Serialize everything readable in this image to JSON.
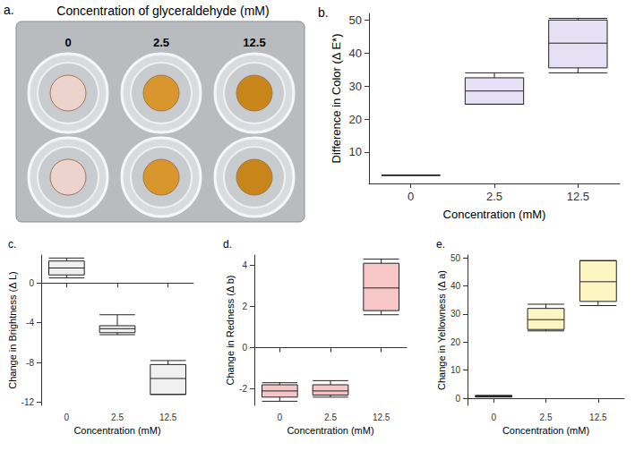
{
  "panel_a": {
    "panel": "a.",
    "title": "Concentration of glyceraldehyde (mM)",
    "labels": [
      "0",
      "2.5",
      "12.5"
    ]
  },
  "chart_data": [
    {
      "type": "boxplot",
      "panel": "b.",
      "y_label": "Difference in Color (Δ E*)",
      "x_label": "Concentration (mM)",
      "categories": [
        "0",
        "2.5",
        "12.5"
      ],
      "values": [
        [
          3,
          3,
          3,
          3,
          3
        ],
        [
          24.5,
          24.5,
          28.5,
          32.5,
          34
        ],
        [
          34,
          35.5,
          43,
          50,
          50.5
        ]
      ],
      "color": "#e6e0f5",
      "ylim": [
        0.5,
        52
      ],
      "yticks": [
        10,
        20,
        30,
        40,
        50
      ],
      "grid": false
    },
    {
      "type": "boxplot",
      "panel": "c.",
      "y_label": "Change in Brightness (Δ L)",
      "x_label": "Concentration (mM)",
      "categories": [
        "0",
        "2.5",
        "12.5"
      ],
      "values": [
        [
          0.5,
          0.8,
          1.5,
          2.2,
          2.5
        ],
        [
          -5.2,
          -5,
          -4.6,
          -4.3,
          -3.2
        ],
        [
          -11.2,
          -11.2,
          -9.6,
          -8.2,
          -7.8
        ]
      ],
      "color": "#f0f0f0",
      "ylim": [
        -12.3,
        2.8
      ],
      "yticks": [
        -12,
        -8,
        -4,
        0
      ],
      "grid": false
    },
    {
      "type": "boxplot",
      "panel": "d.",
      "y_label": "Change in Redness (Δ b)",
      "x_label": "Concentration (mM)",
      "categories": [
        "0",
        "2.5",
        "12.5"
      ],
      "values": [
        [
          -2.6,
          -2.4,
          -2.1,
          -1.8,
          -1.7
        ],
        [
          -2.4,
          -2.3,
          -2.1,
          -1.8,
          -1.6
        ],
        [
          1.6,
          1.8,
          2.9,
          4.1,
          4.3
        ]
      ],
      "color": "#f7c6c6",
      "ylim": [
        -2.8,
        4.5
      ],
      "yticks": [
        -2,
        0,
        2,
        4
      ],
      "grid": false
    },
    {
      "type": "boxplot",
      "panel": "e.",
      "y_label": "Change in Yellowness (Δ a)",
      "x_label": "Concentration (mM)",
      "categories": [
        "0",
        "2.5",
        "12.5"
      ],
      "values": [
        [
          0.5,
          0.5,
          0.8,
          1,
          1
        ],
        [
          24,
          24.5,
          28,
          32,
          33.5
        ],
        [
          33,
          34.5,
          41.5,
          49,
          49
        ]
      ],
      "color": "#fdf6c3",
      "ylim": [
        -2.5,
        51
      ],
      "yticks": [
        0,
        10,
        20,
        30,
        40,
        50
      ],
      "grid": false
    }
  ]
}
